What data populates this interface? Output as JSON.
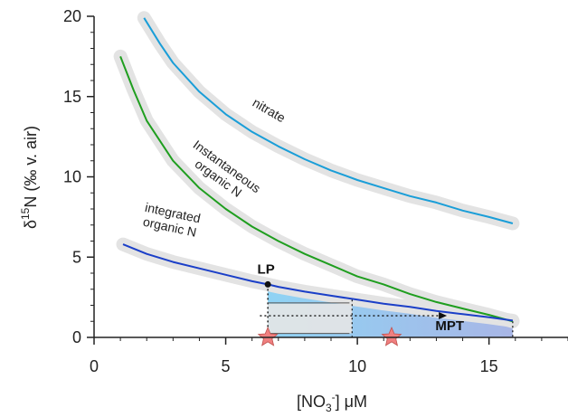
{
  "chart_data": {
    "type": "line",
    "xlabel": {
      "pre": "[NO",
      "sub": "3",
      "sup": "-",
      "post": "] μM"
    },
    "ylabel": {
      "delta": "δ",
      "sup": "15",
      "rest": "N (‰ v. air)"
    },
    "xlim": [
      0,
      18
    ],
    "ylim": [
      0,
      20
    ],
    "x_ticks": [
      0,
      5,
      10,
      15
    ],
    "x_tick_labels": [
      "0",
      "5",
      "10",
      "15"
    ],
    "y_ticks": [
      0,
      5,
      10,
      15,
      20
    ],
    "y_tick_labels": [
      "0",
      "5",
      "10",
      "15",
      "20"
    ],
    "grid": false,
    "series": [
      {
        "name": "nitrate",
        "color": "#1a9ed8",
        "label_lines": [
          "nitrate"
        ],
        "x": [
          1.9,
          2.5,
          3.0,
          4.0,
          5.0,
          6.0,
          7.0,
          8.0,
          9.0,
          10.0,
          11.0,
          12.0,
          13.0,
          14.0,
          15.0,
          15.9
        ],
        "y": [
          19.9,
          18.3,
          17.1,
          15.3,
          13.9,
          12.8,
          11.9,
          11.1,
          10.4,
          9.8,
          9.3,
          8.8,
          8.4,
          7.9,
          7.5,
          7.1
        ]
      },
      {
        "name": "Instantaneous organic N",
        "color": "#1f9e1f",
        "label_lines": [
          "Instantaneous",
          "organic N"
        ],
        "x": [
          1.0,
          1.5,
          2.0,
          3.0,
          4.0,
          5.0,
          6.0,
          7.0,
          8.0,
          9.0,
          10.0,
          11.0,
          12.0,
          13.0,
          14.0,
          15.0,
          15.9
        ],
        "y": [
          17.5,
          15.4,
          13.5,
          11.0,
          9.3,
          8.0,
          6.9,
          6.0,
          5.2,
          4.5,
          3.8,
          3.3,
          2.7,
          2.2,
          1.8,
          1.4,
          1.0
        ]
      },
      {
        "name": "integrated organic N",
        "color": "#1b3fc8",
        "label_lines": [
          "integrated",
          "organic N"
        ],
        "x": [
          1.1,
          2.0,
          3.0,
          4.0,
          5.0,
          6.0,
          6.6,
          7.0,
          8.0,
          9.0,
          10.0,
          11.0,
          12.0,
          13.0,
          14.0,
          15.0,
          15.9
        ],
        "y": [
          5.8,
          5.2,
          4.7,
          4.3,
          3.9,
          3.5,
          3.3,
          3.15,
          2.85,
          2.6,
          2.35,
          2.1,
          1.9,
          1.65,
          1.45,
          1.25,
          1.05
        ]
      }
    ],
    "annotations": [
      {
        "name": "LP",
        "text": "LP",
        "x": 6.6,
        "y": 3.3,
        "marker": "dot"
      },
      {
        "name": "MPT",
        "text": "MPT",
        "x": 13.3,
        "y": 0.35
      }
    ],
    "stars": [
      {
        "x": 6.6,
        "y": 0.0,
        "color": "#f08080"
      },
      {
        "x": 11.3,
        "y": 0.0,
        "color": "#f08080"
      }
    ],
    "shaded_region": {
      "x_range": [
        6.6,
        15.9
      ],
      "color_start": "#8fd3f4",
      "color_end": "#a8b6e6"
    },
    "colors": {
      "band": "#e3e3e3",
      "axis": "#222222",
      "arrow": "#111111"
    }
  }
}
